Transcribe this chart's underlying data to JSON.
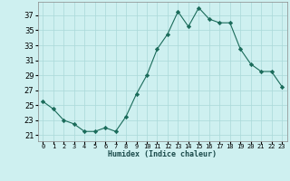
{
  "x": [
    0,
    1,
    2,
    3,
    4,
    5,
    6,
    7,
    8,
    9,
    10,
    11,
    12,
    13,
    14,
    15,
    16,
    17,
    18,
    19,
    20,
    21,
    22,
    23
  ],
  "y": [
    25.5,
    24.5,
    23,
    22.5,
    21.5,
    21.5,
    22,
    21.5,
    23.5,
    26.5,
    29,
    32.5,
    34.5,
    37.5,
    35.5,
    38,
    36.5,
    36,
    36,
    32.5,
    30.5,
    29.5,
    29.5,
    27.5
  ],
  "xlabel": "Humidex (Indice chaleur)",
  "xlim": [
    -0.5,
    23.5
  ],
  "ylim": [
    20.2,
    38.8
  ],
  "yticks": [
    21,
    23,
    25,
    27,
    29,
    31,
    33,
    35,
    37
  ],
  "xtick_labels": [
    "0",
    "1",
    "2",
    "3",
    "4",
    "5",
    "6",
    "7",
    "8",
    "9",
    "10",
    "11",
    "12",
    "13",
    "14",
    "15",
    "16",
    "17",
    "18",
    "19",
    "20",
    "21",
    "22",
    "23"
  ],
  "line_color": "#1a6b5a",
  "marker": "D",
  "marker_size": 2.2,
  "bg_color": "#cef0f0",
  "grid_color": "#aad8d8",
  "axes_bg": "#cef0f0",
  "xlabel_fontsize": 6.0,
  "ytick_fontsize": 6.0,
  "xtick_fontsize": 5.0
}
